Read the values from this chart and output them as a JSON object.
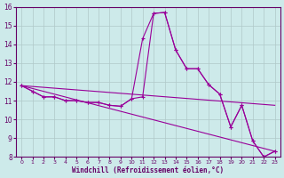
{
  "xlabel": "Windchill (Refroidissement éolien,°C)",
  "xlim": [
    -0.5,
    23.5
  ],
  "ylim": [
    8,
    16
  ],
  "yticks": [
    8,
    9,
    10,
    11,
    12,
    13,
    14,
    15,
    16
  ],
  "xticks": [
    0,
    1,
    2,
    3,
    4,
    5,
    6,
    7,
    8,
    9,
    10,
    11,
    12,
    13,
    14,
    15,
    16,
    17,
    18,
    19,
    20,
    21,
    22,
    23
  ],
  "background_color": "#cdeaea",
  "line_color": "#990099",
  "grid_color": "#b0c8c8",
  "series": [
    {
      "x": [
        0,
        1,
        2,
        3,
        4,
        5,
        6,
        7,
        8,
        9,
        10,
        11,
        12,
        13,
        14,
        15,
        16,
        17,
        18,
        19,
        20,
        21,
        22,
        23
      ],
      "y": [
        11.8,
        11.5,
        11.2,
        11.2,
        11.0,
        11.0,
        10.9,
        10.9,
        10.75,
        10.7,
        11.1,
        14.3,
        15.65,
        15.7,
        13.7,
        12.7,
        12.7,
        11.85,
        11.35,
        9.6,
        10.75,
        8.85,
        8.0,
        8.3
      ],
      "markers": true
    },
    {
      "x": [
        0,
        1,
        2,
        3,
        4,
        5,
        6,
        7,
        8,
        9,
        10,
        11,
        12,
        13,
        14,
        15,
        16,
        17,
        18,
        19,
        20,
        21,
        22,
        23
      ],
      "y": [
        11.8,
        11.5,
        11.2,
        11.2,
        11.0,
        11.0,
        10.9,
        10.9,
        10.75,
        10.7,
        11.1,
        11.2,
        15.65,
        15.7,
        13.7,
        12.7,
        12.7,
        11.85,
        11.35,
        9.6,
        10.75,
        8.85,
        8.0,
        8.3
      ],
      "markers": true
    },
    {
      "x": [
        0,
        23
      ],
      "y": [
        11.8,
        10.75
      ],
      "markers": false
    },
    {
      "x": [
        0,
        23
      ],
      "y": [
        11.8,
        8.3
      ],
      "markers": false
    }
  ]
}
